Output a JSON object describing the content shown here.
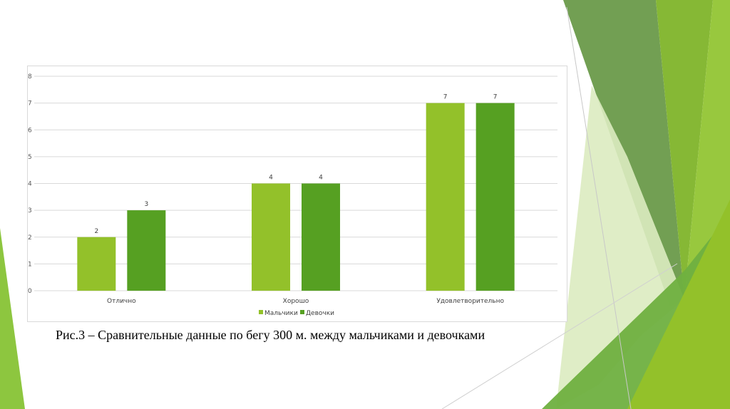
{
  "caption": "Рис.3 – Сравнительные данные по бегу 300 м. между мальчиками и девочками",
  "colors": {
    "boys": "#93c12a",
    "girls": "#56a022",
    "grid": "#d9d9d9"
  },
  "chart_data": {
    "type": "bar",
    "categories": [
      "Отлично",
      "Хорошо",
      "Удовлетворительно"
    ],
    "series": [
      {
        "name": "Мальчики",
        "values": [
          2,
          4,
          7
        ]
      },
      {
        "name": "Девочки",
        "values": [
          3,
          4,
          7
        ]
      }
    ],
    "ylim": [
      0,
      8
    ],
    "yticks": [
      0,
      1,
      2,
      3,
      4,
      5,
      6,
      7,
      8
    ],
    "grid": true,
    "legend": "bottom",
    "data_labels": true
  }
}
